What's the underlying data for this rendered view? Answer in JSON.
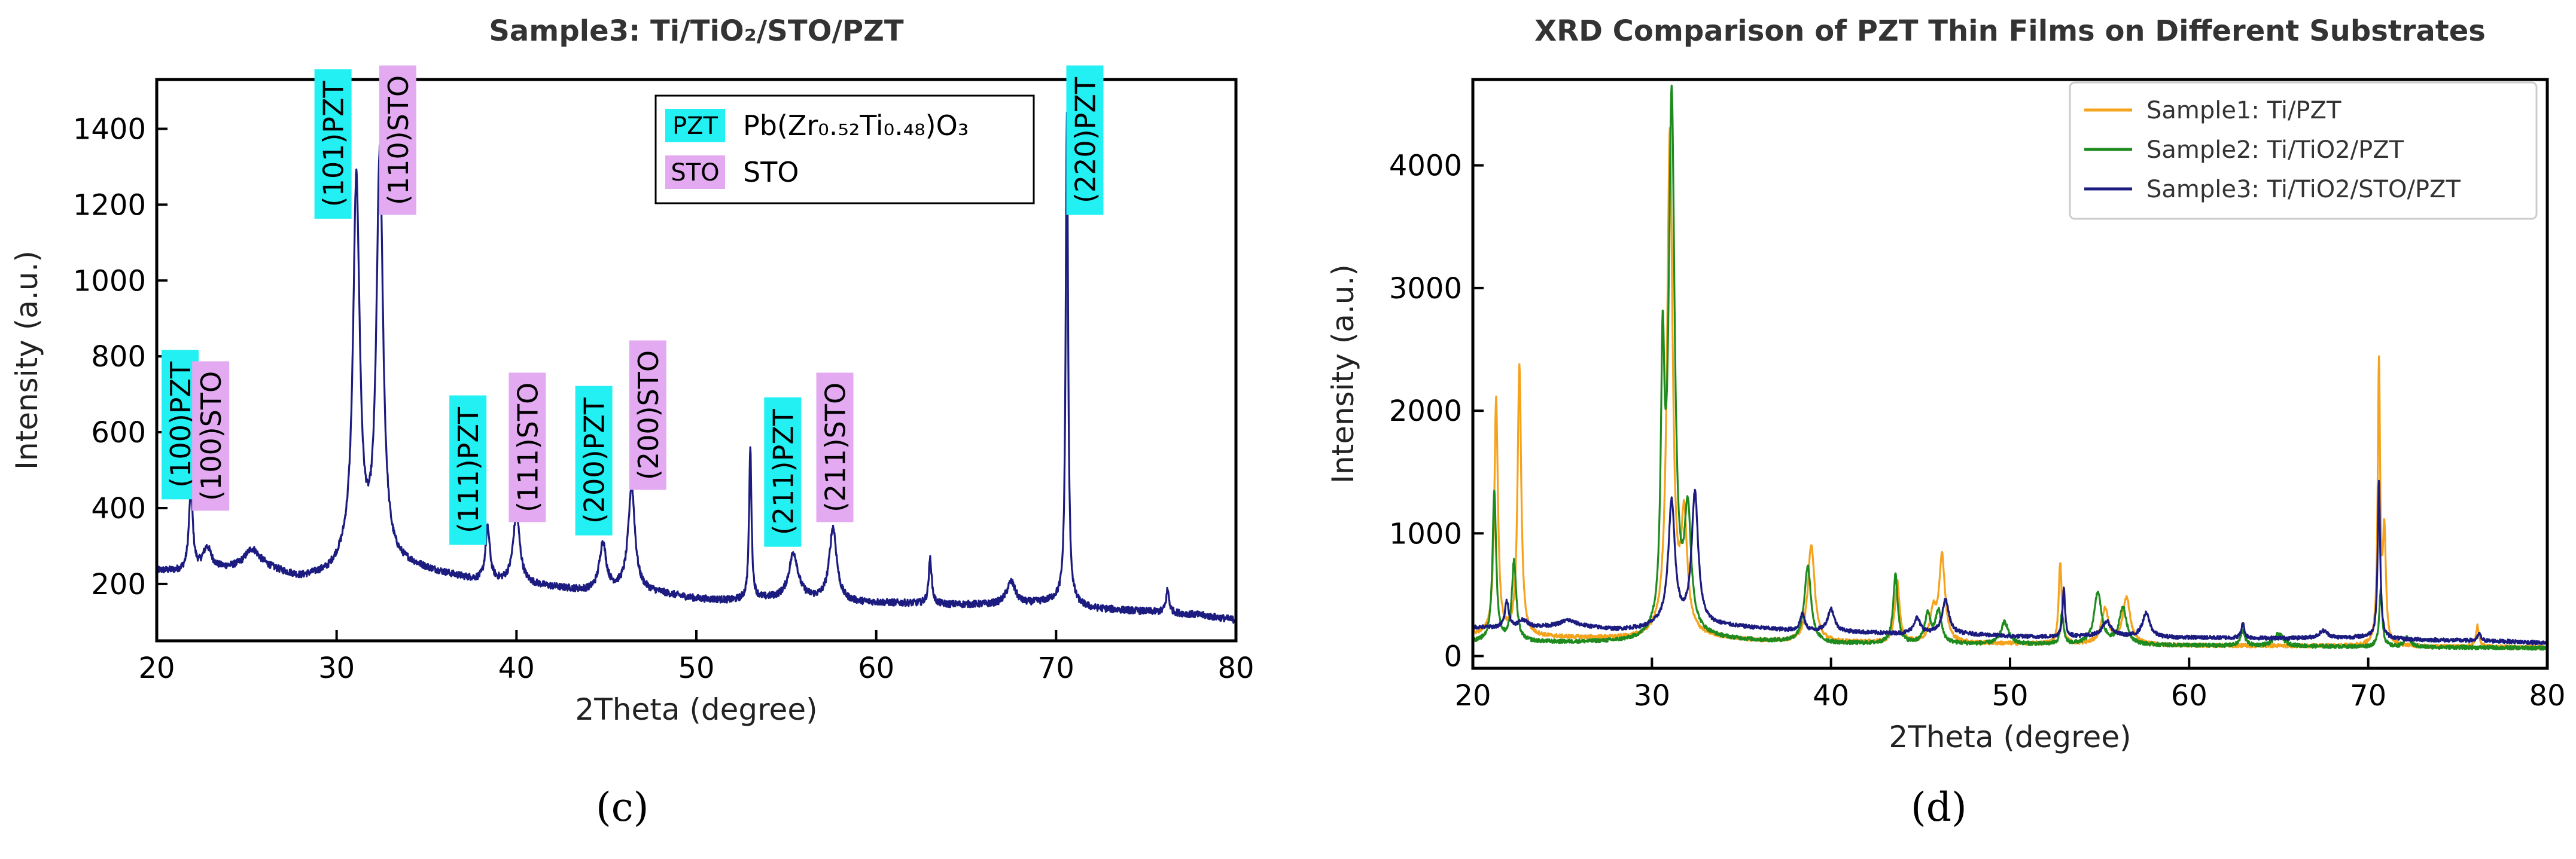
{
  "chart_data": [
    {
      "panel": "(c)",
      "type": "line",
      "title": "Sample3: Ti/TiO₂/STO/PZT",
      "xlabel": "2Theta (degree)",
      "ylabel": "Intensity (a.u.)",
      "xlim": [
        20,
        80
      ],
      "ylim": [
        50,
        1530
      ],
      "xticks": [
        20,
        30,
        40,
        50,
        60,
        70,
        80
      ],
      "yticks": [
        200,
        400,
        600,
        800,
        1000,
        1200,
        1400
      ],
      "series": [
        {
          "name": "Sample3: Ti/TiO2/STO/PZT",
          "color": "#1c1c80",
          "baseline": [
            [
              20,
              235
            ],
            [
              22,
              228
            ],
            [
              24,
              238
            ],
            [
              26,
              240
            ],
            [
              28,
              215
            ],
            [
              29.5,
              225
            ],
            [
              30.5,
              255
            ],
            [
              34,
              245
            ],
            [
              36,
              225
            ],
            [
              38,
              205
            ],
            [
              40,
              200
            ],
            [
              42,
              190
            ],
            [
              44,
              180
            ],
            [
              46,
              185
            ],
            [
              48,
              175
            ],
            [
              50,
              160
            ],
            [
              52,
              155
            ],
            [
              54,
              160
            ],
            [
              56,
              160
            ],
            [
              58,
              150
            ],
            [
              60,
              150
            ],
            [
              62,
              148
            ],
            [
              64,
              145
            ],
            [
              66,
              145
            ],
            [
              68,
              145
            ],
            [
              70,
              155
            ],
            [
              72,
              135
            ],
            [
              74,
              130
            ],
            [
              76,
              125
            ],
            [
              78,
              118
            ],
            [
              80,
              105
            ]
          ],
          "peaks": [
            [
              21.9,
              220,
              0.13
            ],
            [
              22.8,
              60,
              0.3
            ],
            [
              25.3,
              50,
              0.5
            ],
            [
              31.1,
              1000,
              0.22
            ],
            [
              32.4,
              1070,
              0.22
            ],
            [
              38.4,
              140,
              0.15
            ],
            [
              40.0,
              185,
              0.22
            ],
            [
              44.8,
              125,
              0.22
            ],
            [
              46.4,
              275,
              0.22
            ],
            [
              53.0,
              400,
              0.08
            ],
            [
              55.4,
              120,
              0.3
            ],
            [
              57.6,
              195,
              0.25
            ],
            [
              63.0,
              120,
              0.1
            ],
            [
              67.5,
              60,
              0.3
            ],
            [
              70.6,
              1290,
              0.08
            ],
            [
              76.2,
              60,
              0.1
            ]
          ]
        }
      ],
      "legend": [
        {
          "tag": "PZT",
          "label": "Pb(Zr₀.₅₂Ti₀.₄₈)O₃",
          "color": "#22f0f2"
        },
        {
          "tag": "STO",
          "label": "STO",
          "color": "#e3aaf2"
        }
      ],
      "annotations": [
        {
          "text": "(100)PZT",
          "x": 21.3,
          "y": 620,
          "kind": "PZT"
        },
        {
          "text": "(100)STO",
          "x": 23.0,
          "y": 590,
          "kind": "STO"
        },
        {
          "text": "(101)PZT",
          "x": 29.8,
          "y": 1360,
          "kind": "PZT"
        },
        {
          "text": "(110)STO",
          "x": 33.4,
          "y": 1370,
          "kind": "STO"
        },
        {
          "text": "(111)PZT",
          "x": 37.3,
          "y": 500,
          "kind": "PZT"
        },
        {
          "text": "(111)STO",
          "x": 40.6,
          "y": 560,
          "kind": "STO"
        },
        {
          "text": "(200)PZT",
          "x": 44.3,
          "y": 525,
          "kind": "PZT"
        },
        {
          "text": "(200)STO",
          "x": 47.3,
          "y": 645,
          "kind": "STO"
        },
        {
          "text": "(211)PZT",
          "x": 54.8,
          "y": 495,
          "kind": "PZT"
        },
        {
          "text": "(211)STO",
          "x": 57.7,
          "y": 560,
          "kind": "STO"
        },
        {
          "text": "(220)PZT",
          "x": 71.6,
          "y": 1370,
          "kind": "PZT"
        }
      ]
    },
    {
      "panel": "(d)",
      "type": "line",
      "title": "XRD Comparison of PZT Thin Films on Different Substrates",
      "xlabel": "2Theta (degree)",
      "ylabel": "Intensity (a.u.)",
      "xlim": [
        20,
        80
      ],
      "ylim": [
        -100,
        4700
      ],
      "xticks": [
        20,
        30,
        40,
        50,
        60,
        70,
        80
      ],
      "yticks": [
        0,
        1000,
        2000,
        3000,
        4000
      ],
      "legend_position": "top-right",
      "series": [
        {
          "name": "Sample1: Ti/PZT",
          "color": "#f5a21c",
          "baseline": [
            [
              20,
              170
            ],
            [
              25,
              150
            ],
            [
              29,
              140
            ],
            [
              32,
              160
            ],
            [
              36,
              120
            ],
            [
              40,
              110
            ],
            [
              50,
              100
            ],
            [
              60,
              85
            ],
            [
              70,
              80
            ],
            [
              80,
              70
            ]
          ],
          "peaks": [
            [
              21.3,
              1920,
              0.12
            ],
            [
              22.6,
              2200,
              0.12
            ],
            [
              31.0,
              4100,
              0.18
            ],
            [
              31.8,
              900,
              0.2
            ],
            [
              38.9,
              800,
              0.22
            ],
            [
              43.7,
              500,
              0.15
            ],
            [
              45.7,
              230,
              0.2
            ],
            [
              46.2,
              700,
              0.2
            ],
            [
              52.8,
              670,
              0.1
            ],
            [
              55.3,
              280,
              0.25
            ],
            [
              56.5,
              380,
              0.25
            ],
            [
              70.6,
              2260,
              0.08
            ],
            [
              70.9,
              900,
              0.1
            ],
            [
              76.1,
              170,
              0.1
            ]
          ]
        },
        {
          "name": "Sample2: Ti/TiO2/PZT",
          "color": "#1f8b1f",
          "baseline": [
            [
              20,
              115
            ],
            [
              25,
              110
            ],
            [
              29,
              110
            ],
            [
              33,
              140
            ],
            [
              36,
              120
            ],
            [
              40,
              100
            ],
            [
              50,
              95
            ],
            [
              60,
              85
            ],
            [
              70,
              75
            ],
            [
              80,
              65
            ]
          ],
          "peaks": [
            [
              21.2,
              1230,
              0.12
            ],
            [
              22.3,
              650,
              0.15
            ],
            [
              30.6,
              2070,
              0.12
            ],
            [
              31.1,
              4360,
              0.2
            ],
            [
              32.0,
              950,
              0.22
            ],
            [
              38.7,
              620,
              0.22
            ],
            [
              43.6,
              560,
              0.15
            ],
            [
              45.4,
              230,
              0.2
            ],
            [
              46.0,
              260,
              0.2
            ],
            [
              49.7,
              180,
              0.25
            ],
            [
              52.9,
              250,
              0.1
            ],
            [
              54.9,
              420,
              0.25
            ],
            [
              56.3,
              300,
              0.25
            ],
            [
              63.0,
              120,
              0.15
            ],
            [
              65.0,
              100,
              0.3
            ],
            [
              70.7,
              470,
              0.1
            ],
            [
              72.2,
              80,
              0.2
            ]
          ]
        },
        {
          "name": "Sample3: Ti/TiO2/STO/PZT",
          "color": "#1c1c80",
          "baseline": [
            [
              20,
              235
            ],
            [
              22,
              228
            ],
            [
              24,
              238
            ],
            [
              26,
              240
            ],
            [
              28,
              215
            ],
            [
              29.5,
              225
            ],
            [
              30.5,
              255
            ],
            [
              34,
              245
            ],
            [
              36,
              225
            ],
            [
              38,
              205
            ],
            [
              40,
              200
            ],
            [
              42,
              190
            ],
            [
              44,
              180
            ],
            [
              46,
              185
            ],
            [
              48,
              175
            ],
            [
              50,
              160
            ],
            [
              52,
              155
            ],
            [
              54,
              160
            ],
            [
              56,
              160
            ],
            [
              58,
              150
            ],
            [
              60,
              150
            ],
            [
              62,
              148
            ],
            [
              64,
              145
            ],
            [
              66,
              145
            ],
            [
              68,
              145
            ],
            [
              70,
              155
            ],
            [
              72,
              135
            ],
            [
              74,
              130
            ],
            [
              76,
              125
            ],
            [
              78,
              118
            ],
            [
              80,
              105
            ]
          ],
          "peaks": [
            [
              21.9,
              220,
              0.13
            ],
            [
              22.8,
              60,
              0.3
            ],
            [
              25.3,
              50,
              0.5
            ],
            [
              31.1,
              1000,
              0.22
            ],
            [
              32.4,
              1070,
              0.22
            ],
            [
              38.4,
              140,
              0.15
            ],
            [
              40.0,
              185,
              0.22
            ],
            [
              44.8,
              125,
              0.22
            ],
            [
              46.4,
              275,
              0.22
            ],
            [
              53.0,
              400,
              0.08
            ],
            [
              55.4,
              120,
              0.3
            ],
            [
              57.6,
              195,
              0.25
            ],
            [
              63.0,
              120,
              0.1
            ],
            [
              67.5,
              60,
              0.3
            ],
            [
              70.6,
              1290,
              0.08
            ],
            [
              76.2,
              60,
              0.1
            ]
          ]
        }
      ]
    }
  ],
  "captions": {
    "left": "(c)",
    "right": "(d)"
  }
}
